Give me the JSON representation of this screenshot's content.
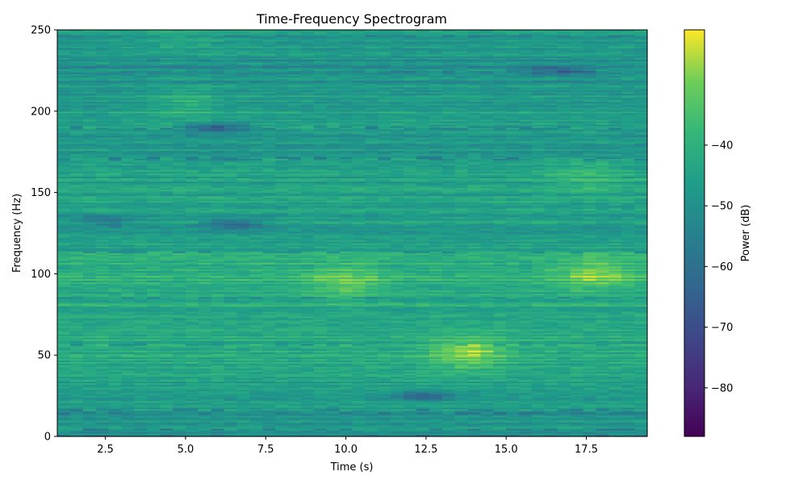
{
  "chart_data": {
    "type": "heatmap",
    "title": "Time-Frequency Spectrogram",
    "xlabel": "Time (s)",
    "ylabel": "Frequency (Hz)",
    "xlim": [
      1.0,
      19.4
    ],
    "ylim": [
      0,
      250
    ],
    "xticks": [
      2.5,
      5.0,
      7.5,
      10.0,
      12.5,
      15.0,
      17.5
    ],
    "xtick_labels": [
      "2.5",
      "5.0",
      "7.5",
      "10.0",
      "12.5",
      "15.0",
      "17.5"
    ],
    "yticks": [
      0,
      50,
      100,
      150,
      200,
      250
    ],
    "ytick_labels": [
      "0",
      "50",
      "100",
      "150",
      "200",
      "250"
    ],
    "colormap": "viridis",
    "colorbar": {
      "label": "Power (dB)",
      "range": [
        -88,
        -21
      ],
      "ticks": [
        -80,
        -70,
        -60,
        -50,
        -40
      ],
      "tick_labels": [
        "−80",
        "−70",
        "−60",
        "−50",
        "−40"
      ]
    },
    "grid": false,
    "mean_power_db_by_band": {
      "frequencies_hz": [
        0,
        25,
        50,
        75,
        100,
        125,
        150,
        175,
        200,
        225,
        250
      ],
      "values_db": [
        -50,
        -47,
        -42,
        -43,
        -40,
        -46,
        -44,
        -47,
        -45,
        -51,
        -48
      ]
    },
    "hotspots": [
      {
        "time_s": 13.8,
        "freq_hz": 52,
        "power_db": -32
      },
      {
        "time_s": 17.8,
        "freq_hz": 100,
        "power_db": -35
      },
      {
        "time_s": 10.0,
        "freq_hz": 95,
        "power_db": -37
      },
      {
        "time_s": 5.0,
        "freq_hz": 205,
        "power_db": -40
      },
      {
        "time_s": 17.5,
        "freq_hz": 160,
        "power_db": -40
      },
      {
        "time_s": 5.0,
        "freq_hz": 245,
        "power_db": -42
      }
    ],
    "coldspots": [
      {
        "time_s": 6.0,
        "freq_hz": 190,
        "power_db": -66
      },
      {
        "time_s": 6.5,
        "freq_hz": 131,
        "power_db": -64
      },
      {
        "time_s": 12.4,
        "freq_hz": 25,
        "power_db": -62
      },
      {
        "time_s": 16.5,
        "freq_hz": 225,
        "power_db": -60
      },
      {
        "time_s": 2.5,
        "freq_hz": 133,
        "power_db": -60
      }
    ]
  }
}
